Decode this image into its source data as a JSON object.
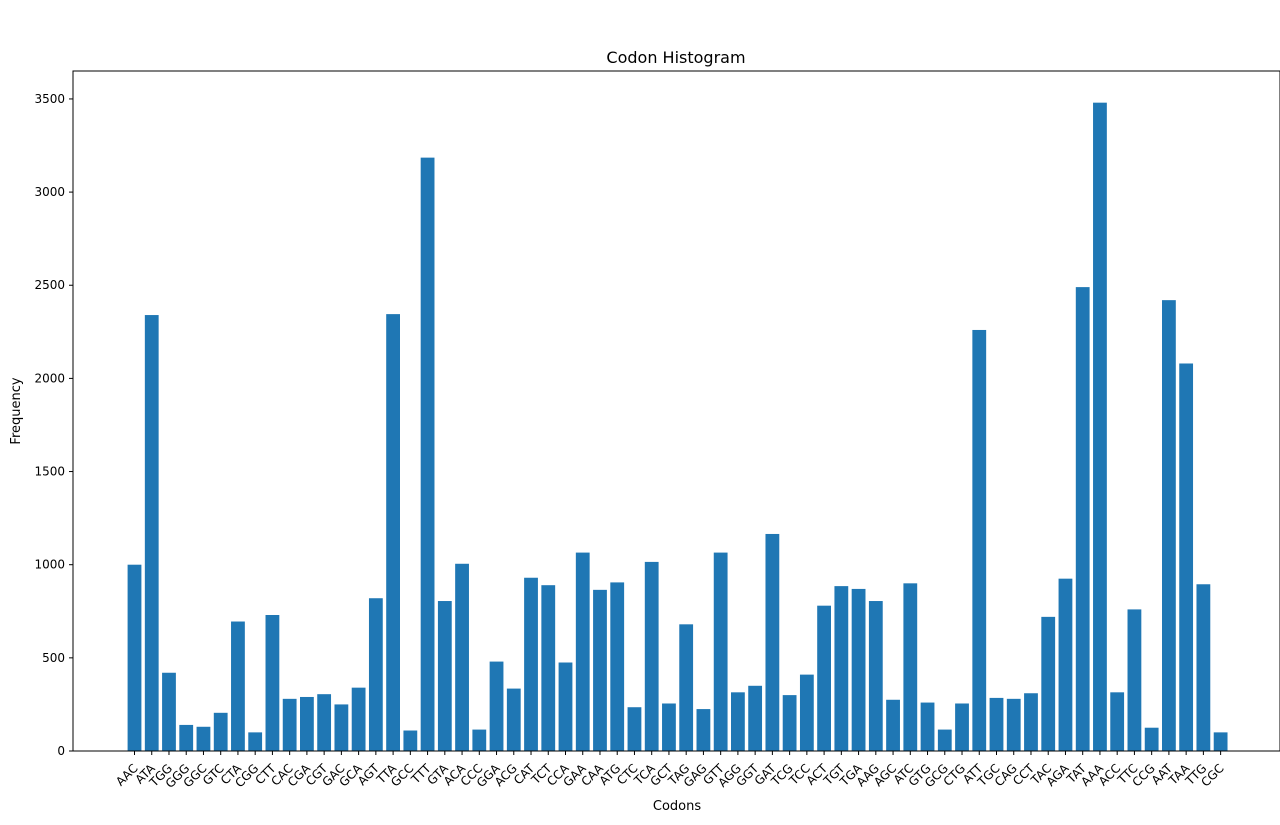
{
  "chart_data": {
    "type": "bar",
    "title": "Codon Histogram",
    "xlabel": "Codons",
    "ylabel": "Frequency",
    "ylim": [
      0,
      3650
    ],
    "yticks": [
      0,
      500,
      1000,
      1500,
      2000,
      2500,
      3000,
      3500
    ],
    "grid": false,
    "bar_color": "#1f77b4",
    "categories": [
      "AAC",
      "ATA",
      "TGG",
      "GGG",
      "GGC",
      "GTC",
      "CTA",
      "CGG",
      "CTT",
      "CAC",
      "CGA",
      "CGT",
      "GAC",
      "GCA",
      "AGT",
      "TTA",
      "GCC",
      "TTT",
      "GTA",
      "ACA",
      "CCC",
      "GGA",
      "ACG",
      "CAT",
      "TCT",
      "CCA",
      "GAA",
      "CAA",
      "ATG",
      "CTC",
      "TCA",
      "GCT",
      "TAG",
      "GAG",
      "GTT",
      "AGG",
      "GGT",
      "GAT",
      "TCG",
      "TCC",
      "ACT",
      "TGT",
      "TGA",
      "AAG",
      "AGC",
      "ATC",
      "GTG",
      "GCG",
      "CTG",
      "ATT",
      "TGC",
      "CAG",
      "CCT",
      "TAC",
      "AGA",
      "TAT",
      "AAA",
      "ACC",
      "TTC",
      "CCG",
      "AAT",
      "TAA",
      "TTG",
      "CGC"
    ],
    "values": [
      1000,
      2340,
      420,
      140,
      130,
      205,
      695,
      100,
      730,
      280,
      290,
      305,
      250,
      340,
      820,
      2345,
      110,
      3185,
      805,
      1005,
      115,
      480,
      335,
      930,
      890,
      475,
      1065,
      865,
      905,
      235,
      1015,
      255,
      680,
      225,
      1065,
      315,
      350,
      1165,
      300,
      410,
      780,
      885,
      870,
      805,
      275,
      900,
      260,
      115,
      255,
      2260,
      285,
      280,
      310,
      720,
      925,
      2490,
      3480,
      315,
      760,
      125,
      2420,
      2080,
      895,
      100
    ]
  }
}
